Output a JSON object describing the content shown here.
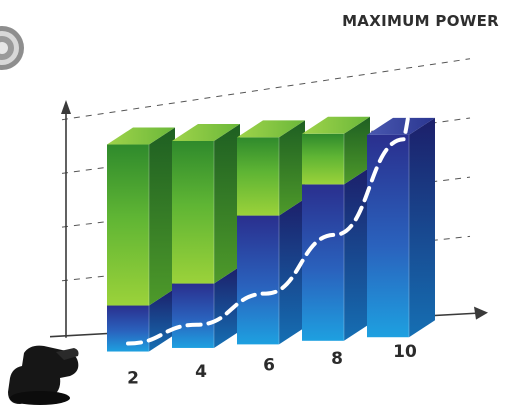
{
  "chart_data": {
    "type": "bar",
    "title": "MAXIMUM POWER",
    "xlabel": "",
    "ylabel": "",
    "categories": [
      "2",
      "4",
      "6",
      "8",
      "10"
    ],
    "series": [
      {
        "name": "",
        "values": [
          10,
          14,
          28,
          34,
          44
        ]
      },
      {
        "name": "",
        "values": [
          35,
          31,
          17,
          11,
          0
        ]
      }
    ],
    "ylim": [
      0,
      60
    ],
    "grid": true,
    "trend_line": [
      0,
      2,
      8,
      20,
      40
    ],
    "colors": {
      "lower": "#1f8fd6",
      "upper": "#5cb332",
      "lower_dark": "#232b86",
      "upper_dark": "#2f7a2a",
      "grid": "#555555",
      "trend": "#ffffff"
    },
    "icons": [
      "polishing-tool-icon",
      "pad-badge-icon"
    ]
  }
}
